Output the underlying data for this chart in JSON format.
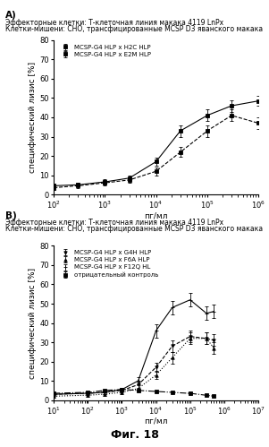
{
  "panel_A": {
    "title_line1": "Эффекторные клетки: Т-клеточная линия макака 4119 LnPx",
    "title_line2": "Клетки-мишени: CHO, трансфицированные MCSP D3 яванского макака",
    "xlabel": "пг/мл",
    "ylabel": "специфический лизис [%]",
    "xlim": [
      100,
      1000000
    ],
    "ylim": [
      0,
      80
    ],
    "yticks": [
      0,
      10,
      20,
      30,
      40,
      50,
      60,
      70,
      80
    ],
    "series": [
      {
        "label": "MCSP-G4 HLP x H2C HLP",
        "linestyle": "-",
        "marker": "s",
        "x": [
          100,
          300,
          1000,
          3000,
          10000,
          30000,
          100000,
          300000,
          1000000
        ],
        "y": [
          4.5,
          5.0,
          6.5,
          8.5,
          17.0,
          33.0,
          41.0,
          46.0,
          48.5
        ],
        "yerr": [
          1.0,
          1.0,
          1.5,
          1.5,
          2.0,
          3.0,
          3.0,
          3.0,
          2.5
        ]
      },
      {
        "label": "MCSP-G4 HLP x E2M HLP",
        "linestyle": "--",
        "marker": "s",
        "x": [
          100,
          300,
          1000,
          3000,
          10000,
          30000,
          100000,
          300000,
          1000000
        ],
        "y": [
          3.5,
          4.5,
          6.0,
          7.5,
          12.0,
          22.0,
          33.0,
          41.0,
          37.0
        ],
        "yerr": [
          1.0,
          1.0,
          1.5,
          1.5,
          2.0,
          2.5,
          3.0,
          3.0,
          3.0
        ]
      }
    ]
  },
  "panel_B": {
    "title_line1": "Эффекторные клетки: Т-клеточная линия макака 4119 LnPx",
    "title_line2": "Клетки-мишени: CHO, трансфицированные MCSP D3 яванского макака",
    "xlabel": "пг/мл",
    "ylabel": "специфический лизис [%]",
    "xlim": [
      10,
      10000000
    ],
    "ylim": [
      0,
      80
    ],
    "yticks": [
      0,
      10,
      20,
      30,
      40,
      50,
      60,
      70,
      80
    ],
    "series": [
      {
        "label": "MCSP-G4 HLP x G4H HLP",
        "linestyle": "--",
        "marker": "v",
        "x": [
          10,
          100,
          300,
          1000,
          3000,
          10000,
          30000,
          100000,
          300000,
          500000
        ],
        "y": [
          3.0,
          3.5,
          4.0,
          5.0,
          8.0,
          17.0,
          28.0,
          33.0,
          32.0,
          31.0
        ],
        "yerr": [
          1.0,
          1.0,
          1.0,
          1.0,
          1.5,
          2.5,
          3.0,
          3.0,
          3.0,
          3.0
        ]
      },
      {
        "label": "MCSP-G4 HLP x F6A HLP",
        "linestyle": ":",
        "marker": "^",
        "x": [
          10,
          100,
          300,
          1000,
          3000,
          10000,
          30000,
          100000,
          300000,
          500000
        ],
        "y": [
          2.0,
          2.5,
          3.0,
          4.0,
          6.0,
          13.0,
          22.0,
          32.0,
          32.0,
          27.0
        ],
        "yerr": [
          1.0,
          1.0,
          1.0,
          1.0,
          1.5,
          2.0,
          3.0,
          3.0,
          3.0,
          3.0
        ]
      },
      {
        "label": "MCSP-G4 HLP x F12Q HL",
        "linestyle": "-",
        "marker": "+",
        "x": [
          10,
          100,
          300,
          1000,
          3000,
          10000,
          30000,
          100000,
          300000,
          500000
        ],
        "y": [
          3.0,
          3.5,
          4.0,
          5.5,
          10.0,
          36.0,
          48.0,
          52.0,
          45.0,
          46.0
        ],
        "yerr": [
          1.0,
          1.0,
          1.0,
          1.0,
          2.0,
          3.5,
          3.5,
          3.5,
          3.5,
          3.5
        ]
      },
      {
        "label": "отрицательный контроль",
        "linestyle": "-.",
        "marker": "s",
        "x": [
          10,
          100,
          300,
          1000,
          3000,
          10000,
          30000,
          100000,
          300000,
          500000
        ],
        "y": [
          3.5,
          4.0,
          5.0,
          5.5,
          5.0,
          4.5,
          4.0,
          3.5,
          2.5,
          2.0
        ],
        "yerr": [
          0.5,
          0.5,
          0.5,
          0.5,
          0.5,
          0.5,
          0.5,
          0.5,
          0.5,
          0.5
        ]
      }
    ]
  },
  "fig_label": "Фиг. 18",
  "label_A": "A)",
  "label_B": "B)",
  "color": "black",
  "fontsize_header": 5.5,
  "fontsize_panel_label": 7.5,
  "fontsize_axis_label": 6.5,
  "fontsize_tick": 6.0,
  "fontsize_legend": 5.0,
  "fontsize_fig_label": 9
}
